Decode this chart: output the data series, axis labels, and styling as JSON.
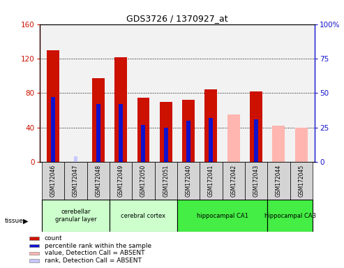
{
  "title": "GDS3726 / 1370927_at",
  "samples": [
    "GSM172046",
    "GSM172047",
    "GSM172048",
    "GSM172049",
    "GSM172050",
    "GSM172051",
    "GSM172040",
    "GSM172041",
    "GSM172042",
    "GSM172043",
    "GSM172044",
    "GSM172045"
  ],
  "count_values": [
    130,
    0,
    97,
    122,
    75,
    70,
    72,
    84,
    0,
    82,
    0,
    0
  ],
  "count_absent_values": [
    0,
    0,
    0,
    0,
    0,
    0,
    0,
    0,
    55,
    0,
    42,
    40
  ],
  "rank_values": [
    47,
    0,
    42,
    42,
    27,
    25,
    30,
    32,
    0,
    31,
    0,
    0
  ],
  "rank_absent_values": [
    0,
    4,
    0,
    0,
    0,
    0,
    0,
    0,
    0,
    0,
    0,
    0
  ],
  "ylim_left": [
    0,
    160
  ],
  "ylim_right": [
    0,
    100
  ],
  "yticks_left": [
    0,
    40,
    80,
    120,
    160
  ],
  "yticks_right": [
    0,
    25,
    50,
    75,
    100
  ],
  "color_count": "#cc1100",
  "color_rank": "#1111cc",
  "color_count_absent": "#ffb6b0",
  "color_rank_absent": "#c8c8ff",
  "tissue_groups": [
    {
      "label": "cerebellar\ngranular layer",
      "start": 0,
      "end": 3,
      "color": "#ccffcc"
    },
    {
      "label": "cerebral cortex",
      "start": 3,
      "end": 6,
      "color": "#ccffcc"
    },
    {
      "label": "hippocampal CA1",
      "start": 6,
      "end": 10,
      "color": "#44ee44"
    },
    {
      "label": "hippocampal CA3",
      "start": 10,
      "end": 12,
      "color": "#44ee44"
    }
  ],
  "legend_items": [
    {
      "label": "count",
      "color": "#cc1100"
    },
    {
      "label": "percentile rank within the sample",
      "color": "#1111cc"
    },
    {
      "label": "value, Detection Call = ABSENT",
      "color": "#ffb6b0"
    },
    {
      "label": "rank, Detection Call = ABSENT",
      "color": "#c8c8ff"
    }
  ],
  "bar_width": 0.55,
  "rank_bar_width": 0.18
}
